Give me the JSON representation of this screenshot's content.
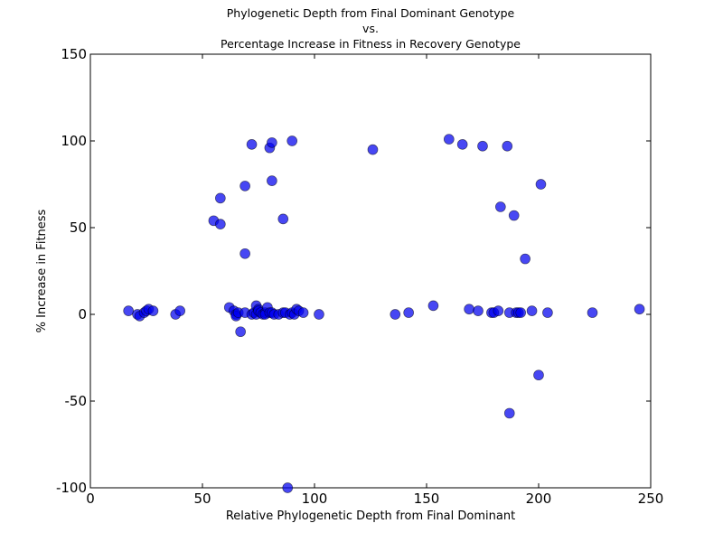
{
  "chart_data": {
    "type": "scatter",
    "title_lines": [
      "Phylogenetic Depth from Final Dominant Genotype",
      "vs.",
      "Percentage Increase in Fitness in Recovery Genotype"
    ],
    "xlabel": "Relative Phylogenetic Depth from Final Dominant",
    "ylabel": "% Increase in Fitness",
    "xlim": [
      0,
      250
    ],
    "ylim": [
      -100,
      150
    ],
    "x_ticks": [
      "0",
      "50",
      "100",
      "150",
      "200",
      "250"
    ],
    "y_ticks": [
      "-100",
      "-50",
      "0",
      "50",
      "100",
      "150"
    ],
    "grid": false,
    "marker_color": "#0000ee",
    "series": [
      {
        "x": [
          17,
          21,
          22,
          24,
          25,
          26,
          28,
          38,
          40,
          55,
          58,
          58,
          62,
          64,
          65,
          65,
          66,
          67,
          69,
          69,
          69,
          72,
          72,
          73,
          74,
          74,
          75,
          75,
          76,
          77,
          78,
          78,
          79,
          80,
          80,
          81,
          81,
          81,
          82,
          84,
          86,
          86,
          87,
          88,
          89,
          90,
          90,
          91,
          92,
          93,
          95,
          102,
          126,
          136,
          142,
          153,
          160,
          166,
          169,
          173,
          175,
          179,
          180,
          182,
          183,
          186,
          187,
          187,
          189,
          190,
          191,
          192,
          194,
          197,
          200,
          201,
          204,
          224,
          245
        ],
        "y": [
          2,
          0,
          -1,
          1,
          2,
          3,
          2,
          0,
          2,
          54,
          67,
          52,
          4,
          2,
          0,
          -1,
          1,
          -10,
          74,
          35,
          1,
          98,
          0,
          1,
          0,
          5,
          3,
          2,
          1,
          0,
          1,
          0,
          4,
          96,
          1,
          99,
          77,
          1,
          0,
          0,
          55,
          1,
          1,
          -100,
          0,
          1,
          100,
          0,
          3,
          2,
          1,
          0,
          95,
          0,
          1,
          5,
          101,
          98,
          3,
          2,
          97,
          1,
          1,
          2,
          62,
          97,
          1,
          -57,
          57,
          1,
          1,
          1,
          32,
          2,
          -35,
          75,
          1,
          1,
          3
        ]
      }
    ]
  }
}
